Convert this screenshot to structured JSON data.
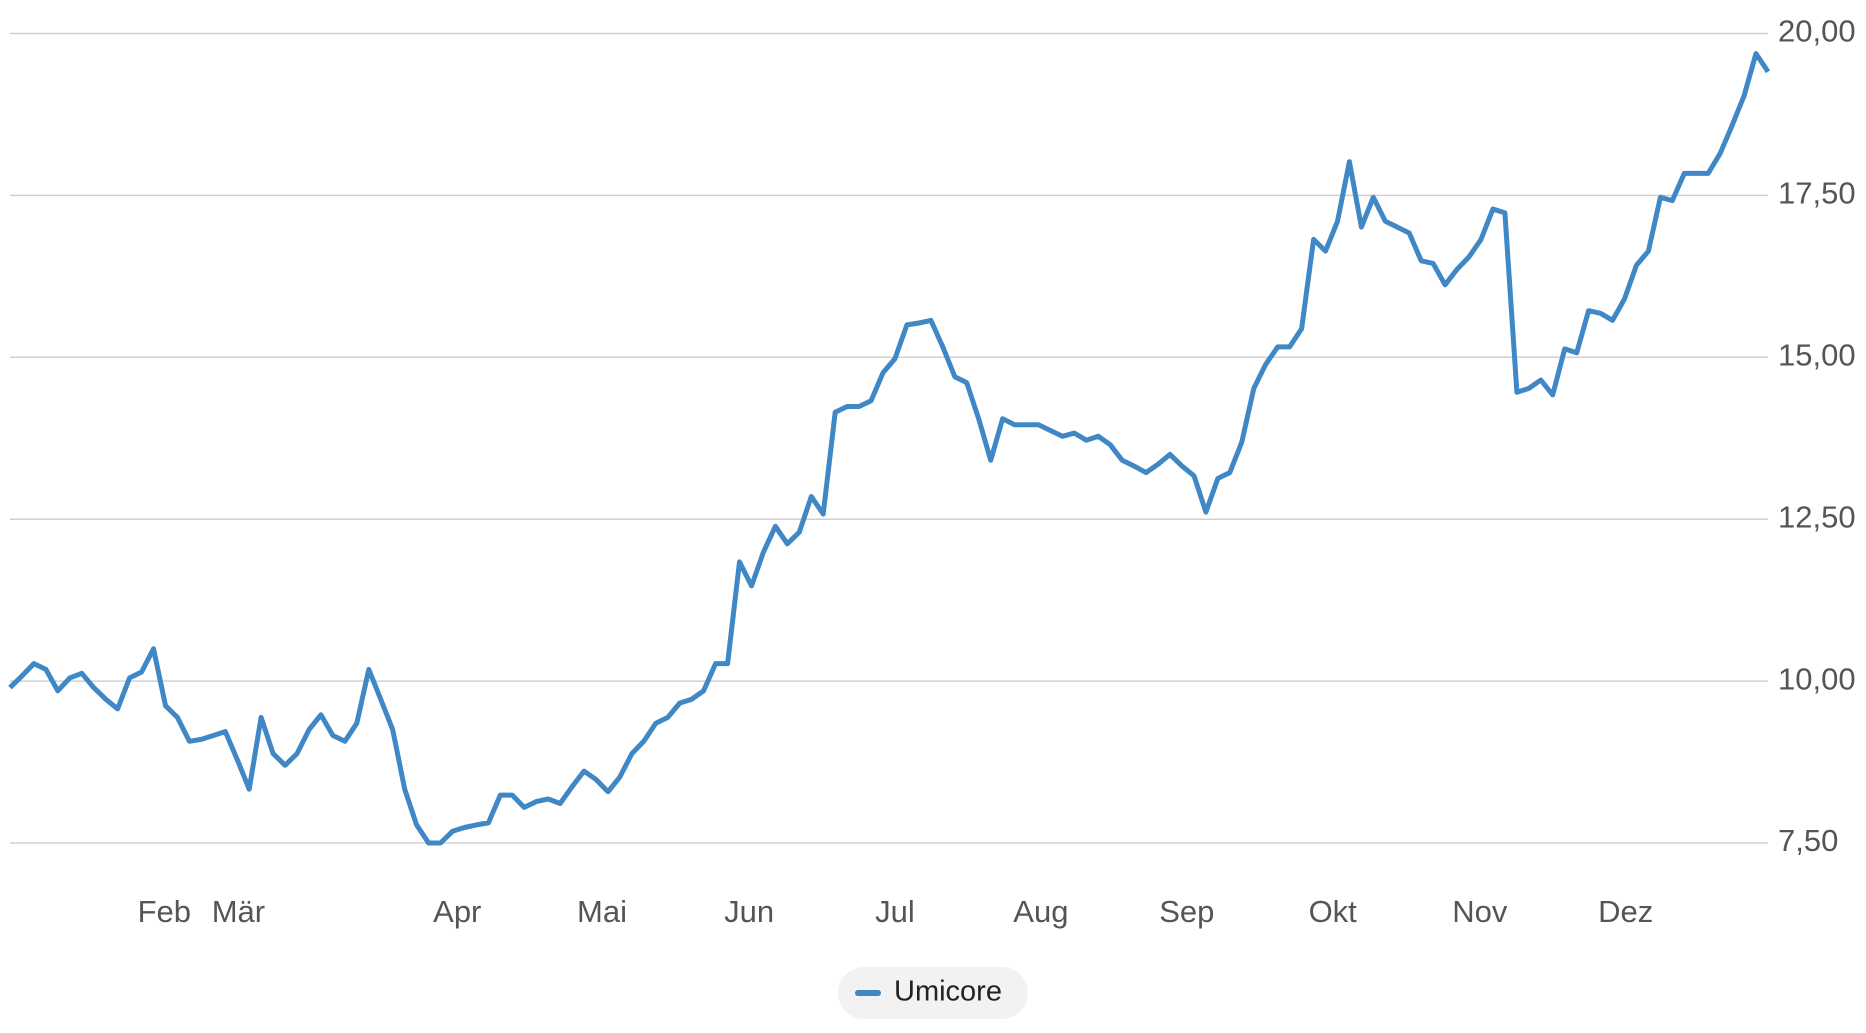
{
  "chart_data": {
    "type": "line",
    "xlim": [
      0,
      147
    ],
    "xticks": [
      {
        "value": 12.9,
        "label": "Feb"
      },
      {
        "value": 19.1,
        "label": "Mär"
      },
      {
        "value": 37.4,
        "label": "Apr"
      },
      {
        "value": 49.5,
        "label": "Mai"
      },
      {
        "value": 61.8,
        "label": "Jun"
      },
      {
        "value": 74,
        "label": "Jul"
      },
      {
        "value": 86.2,
        "label": "Aug"
      },
      {
        "value": 98.4,
        "label": "Sep"
      },
      {
        "value": 110.6,
        "label": "Okt"
      },
      {
        "value": 122.9,
        "label": "Nov"
      },
      {
        "value": 135.1,
        "label": "Dez"
      }
    ],
    "ylim": [
      6.6,
      20.3
    ],
    "yticks": [
      {
        "value": 7.5,
        "label": "7,50"
      },
      {
        "value": 10,
        "label": "10,00"
      },
      {
        "value": 12.5,
        "label": "12,50"
      },
      {
        "value": 15,
        "label": "15,00"
      },
      {
        "value": 17.5,
        "label": "17,50"
      },
      {
        "value": 20,
        "label": "20,00"
      }
    ],
    "grid": true,
    "series": [
      {
        "name": "Umicore",
        "color": "#3f88c5",
        "values": [
          9.9,
          10.08,
          10.27,
          10.18,
          9.85,
          10.05,
          10.12,
          9.9,
          9.72,
          9.57,
          10.05,
          10.14,
          10.5,
          9.62,
          9.44,
          9.07,
          9.1,
          9.16,
          9.22,
          8.79,
          8.33,
          9.44,
          8.88,
          8.7,
          8.88,
          9.25,
          9.48,
          9.16,
          9.07,
          9.35,
          10.18,
          9.72,
          9.25,
          8.33,
          7.78,
          7.5,
          7.5,
          7.68,
          7.74,
          7.78,
          7.81,
          8.24,
          8.24,
          8.05,
          8.14,
          8.18,
          8.11,
          8.37,
          8.61,
          8.48,
          8.29,
          8.52,
          8.88,
          9.07,
          9.35,
          9.44,
          9.66,
          9.72,
          9.85,
          10.27,
          10.27,
          11.84,
          11.47,
          11.99,
          12.39,
          12.12,
          12.3,
          12.85,
          12.58,
          14.15,
          14.24,
          14.24,
          14.33,
          14.76,
          14.98,
          15.5,
          15.53,
          15.57,
          15.16,
          14.7,
          14.61,
          14.05,
          13.41,
          14.05,
          13.96,
          13.96,
          13.96,
          13.87,
          13.78,
          13.83,
          13.72,
          13.78,
          13.65,
          13.41,
          13.32,
          13.22,
          13.35,
          13.5,
          13.32,
          13.17,
          12.61,
          13.13,
          13.22,
          13.69,
          14.52,
          14.89,
          15.16,
          15.16,
          15.44,
          16.82,
          16.64,
          17.1,
          18.02,
          17.01,
          17.47,
          17.1,
          17.01,
          16.92,
          16.49,
          16.45,
          16.12,
          16.36,
          16.55,
          16.82,
          17.29,
          17.23,
          14.46,
          14.52,
          14.65,
          14.42,
          15.13,
          15.07,
          15.72,
          15.68,
          15.57,
          15.9,
          16.42,
          16.64,
          17.47,
          17.42,
          17.84,
          17.84,
          17.84,
          18.15,
          18.58,
          19.04,
          19.69,
          19.41
        ]
      }
    ]
  }
}
